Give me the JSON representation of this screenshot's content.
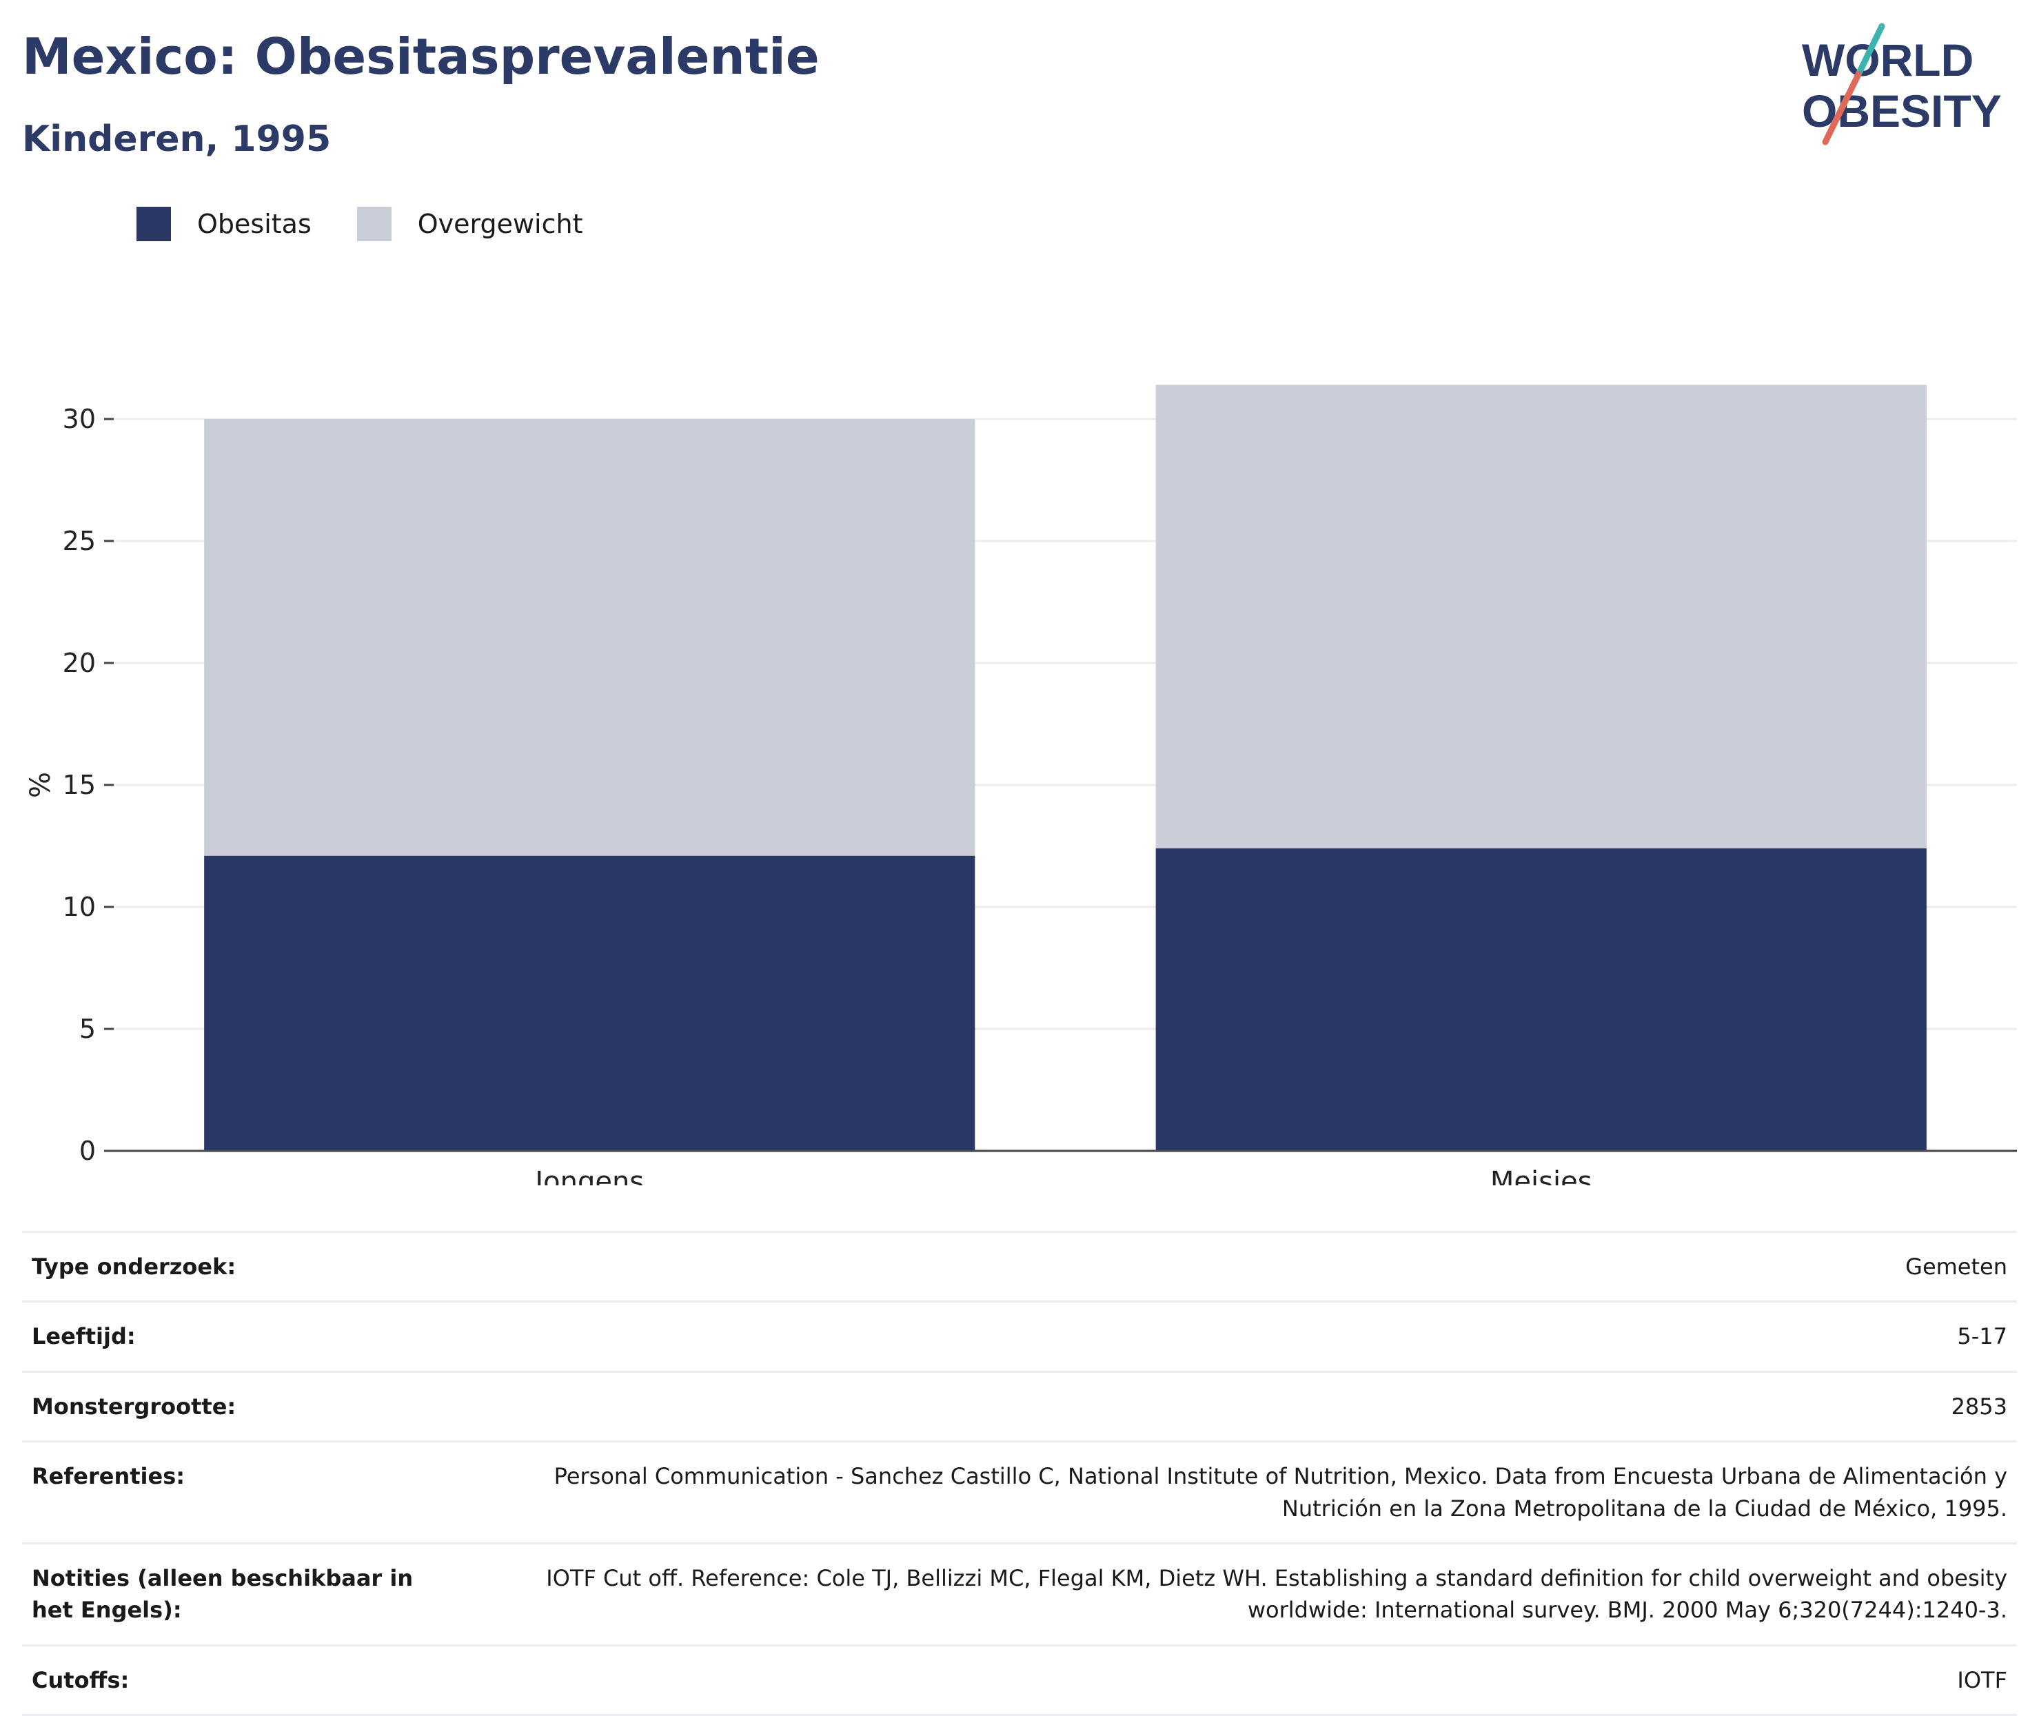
{
  "header": {
    "title": "Mexico: Obesitasprevalentie",
    "subtitle": "Kinderen, 1995"
  },
  "logo": {
    "line1": "WORLD",
    "line2": "OBESITY",
    "colors": {
      "text": "#2b3a66",
      "slash_top": "#3db3b0",
      "slash_bottom": "#e06a5a"
    }
  },
  "legend": {
    "items": [
      {
        "label": "Obesitas",
        "color": "#2b3764"
      },
      {
        "label": "Overgewicht",
        "color": "#cbcdd9"
      }
    ]
  },
  "chart_data": {
    "type": "bar",
    "stacked": true,
    "categories": [
      "Jongens",
      "Meisjes"
    ],
    "series": [
      {
        "name": "Obesitas",
        "color": "#2b3764",
        "values": [
          12.1,
          12.4
        ]
      },
      {
        "name": "Overgewicht",
        "color": "#cbcdd9",
        "values": [
          17.9,
          19.0
        ]
      }
    ],
    "ylabel": "%",
    "xlabel": "",
    "ylim": [
      0,
      32
    ],
    "yticks": [
      0,
      5,
      10,
      15,
      20,
      25,
      30
    ],
    "grid": true
  },
  "info": {
    "rows": [
      {
        "label": "Type onderzoek:",
        "value": "Gemeten"
      },
      {
        "label": "Leeftijd:",
        "value": "5-17"
      },
      {
        "label": "Monstergrootte:",
        "value": "2853"
      },
      {
        "label": "Referenties:",
        "value": "Personal Communication - Sanchez Castillo C, National Institute of Nutrition, Mexico. Data from Encuesta Urbana de Alimentación y Nutrición en la Zona Metropolitana de la Ciudad de México, 1995."
      },
      {
        "label": "Notities (alleen beschikbaar in het Engels):",
        "value": "IOTF Cut off. Reference: Cole TJ, Bellizzi MC, Flegal KM, Dietz WH. Establishing a standard definition for child overweight and obesity worldwide: International survey. BMJ. 2000 May 6;320(7244):1240-3."
      },
      {
        "label": "Cutoffs:",
        "value": "IOTF"
      }
    ]
  }
}
